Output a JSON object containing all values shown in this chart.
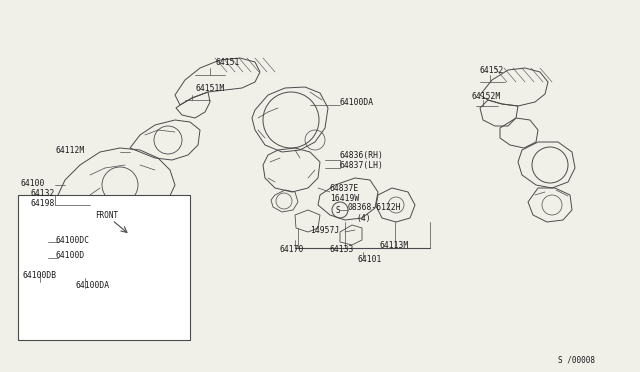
{
  "bg_color": "#f0efe8",
  "line_color": "#4a4a4a",
  "text_color": "#1a1a1a",
  "diagram_number": "S /00008",
  "fig_w": 6.4,
  "fig_h": 3.72,
  "dpi": 100,
  "xlim": [
    0,
    640
  ],
  "ylim": [
    0,
    372
  ]
}
